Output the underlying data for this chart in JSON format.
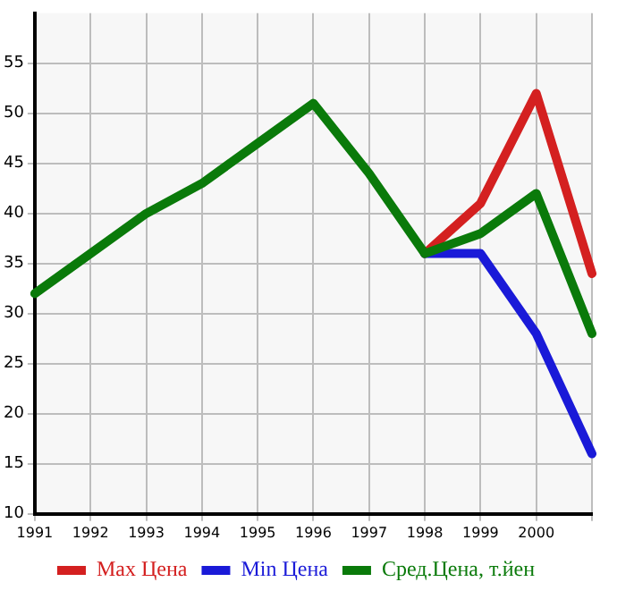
{
  "chart_data": {
    "type": "line",
    "categories": [
      "1991",
      "1992",
      "1993",
      "1994",
      "1995",
      "1996",
      "1997",
      "1998",
      "1999",
      "2000",
      null
    ],
    "series": [
      {
        "name": "Max Цена",
        "color": "#d42020",
        "values": [
          null,
          null,
          null,
          null,
          null,
          null,
          null,
          36,
          41,
          52,
          34
        ]
      },
      {
        "name": "Min Цена",
        "color": "#1a1ad8",
        "values": [
          null,
          null,
          null,
          null,
          null,
          null,
          null,
          36,
          36,
          28,
          16
        ]
      },
      {
        "name": "Сред.Цена, т.йен",
        "color": "#0a7a0a",
        "values": [
          32,
          36,
          40,
          43,
          47,
          51,
          44,
          36,
          38,
          42,
          28
        ]
      }
    ],
    "ylim": [
      10,
      60
    ],
    "yticks": [
      10,
      15,
      20,
      25,
      30,
      35,
      40,
      45,
      50,
      55
    ],
    "grid": true,
    "legend": "bottom",
    "marker": "none",
    "line_style": "solid"
  }
}
